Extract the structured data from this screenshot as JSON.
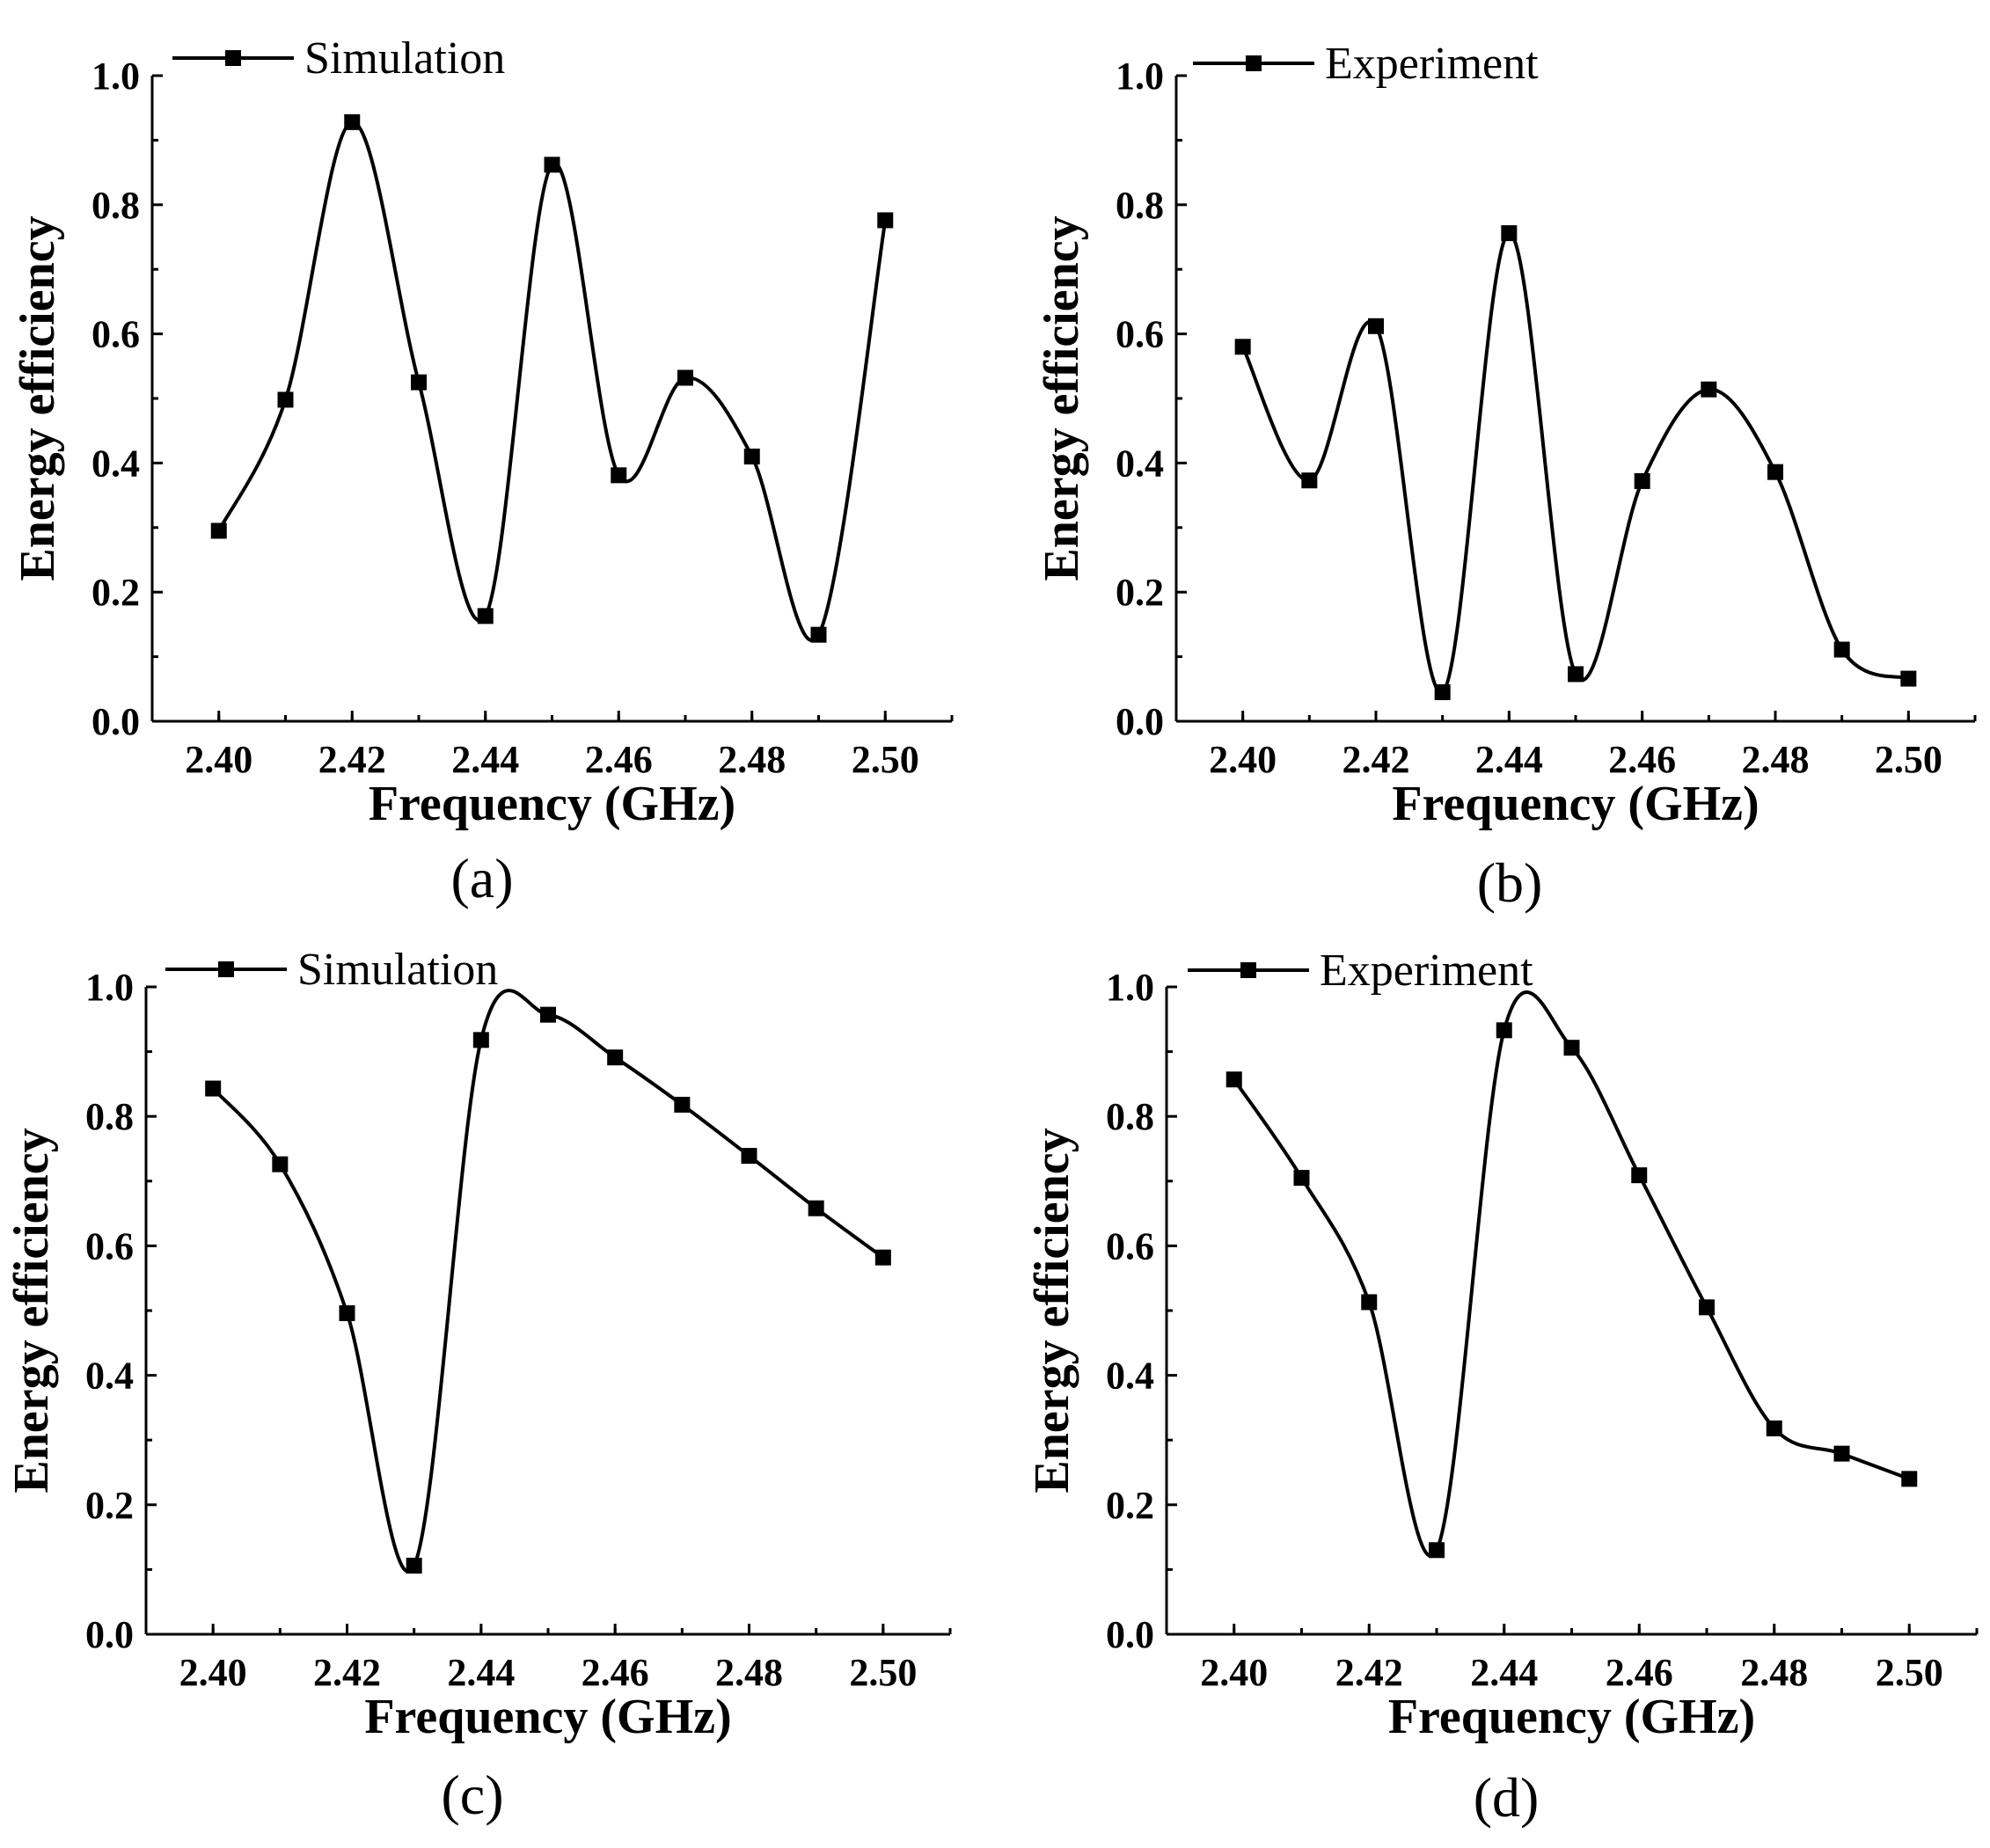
{
  "figure": {
    "panels": [
      "(a)",
      "(b)",
      "(c)",
      "(d)"
    ]
  },
  "chart_data": [
    {
      "type": "line",
      "panel": "(a)",
      "legend": "Simulation",
      "xlabel": "Frequency (GHz)",
      "ylabel": "Energy efficiency",
      "xlim": [
        2.39,
        2.51
      ],
      "ylim": [
        0.0,
        1.0
      ],
      "xticks": [
        "2.40",
        "2.42",
        "2.44",
        "2.46",
        "2.48",
        "2.50"
      ],
      "yticks": [
        "0.0",
        "0.2",
        "0.4",
        "0.6",
        "0.8",
        "1.0"
      ],
      "x": [
        2.4,
        2.41,
        2.42,
        2.43,
        2.44,
        2.45,
        2.46,
        2.47,
        2.48,
        2.49,
        2.5
      ],
      "values": [
        0.295,
        0.498,
        0.928,
        0.525,
        0.163,
        0.862,
        0.381,
        0.532,
        0.41,
        0.134,
        0.776
      ]
    },
    {
      "type": "line",
      "panel": "(b)",
      "legend": "Experiment",
      "xlabel": "Frequency (GHz)",
      "ylabel": "Energy efficiency",
      "xlim": [
        2.39,
        2.51
      ],
      "ylim": [
        0.0,
        1.0
      ],
      "xticks": [
        "2.40",
        "2.42",
        "2.44",
        "2.46",
        "2.48",
        "2.50"
      ],
      "yticks": [
        "0.0",
        "0.2",
        "0.4",
        "0.6",
        "0.8",
        "1.0"
      ],
      "x": [
        2.4,
        2.41,
        2.42,
        2.43,
        2.44,
        2.45,
        2.46,
        2.47,
        2.48,
        2.49,
        2.5
      ],
      "values": [
        0.58,
        0.373,
        0.612,
        0.045,
        0.756,
        0.073,
        0.372,
        0.514,
        0.386,
        0.111,
        0.066
      ]
    },
    {
      "type": "line",
      "panel": "(c)",
      "legend": "Simulation",
      "xlabel": "Frequency (GHz)",
      "ylabel": "Energy efficiency",
      "xlim": [
        2.39,
        2.51
      ],
      "ylim": [
        0.0,
        1.0
      ],
      "xticks": [
        "2.40",
        "2.42",
        "2.44",
        "2.46",
        "2.48",
        "2.50"
      ],
      "yticks": [
        "0.0",
        "0.2",
        "0.4",
        "0.6",
        "0.8",
        "1.0"
      ],
      "x": [
        2.4,
        2.41,
        2.42,
        2.43,
        2.44,
        2.45,
        2.46,
        2.47,
        2.48,
        2.49,
        2.5
      ],
      "values": [
        0.843,
        0.726,
        0.496,
        0.106,
        0.918,
        0.957,
        0.891,
        0.818,
        0.739,
        0.658,
        0.582
      ]
    },
    {
      "type": "line",
      "panel": "(d)",
      "legend": "Experiment",
      "xlabel": "Frequency (GHz)",
      "ylabel": "Energy efficiency",
      "xlim": [
        2.39,
        2.51
      ],
      "ylim": [
        0.0,
        1.0
      ],
      "xticks": [
        "2.40",
        "2.42",
        "2.44",
        "2.46",
        "2.48",
        "2.50"
      ],
      "yticks": [
        "0.0",
        "0.2",
        "0.4",
        "0.6",
        "0.8",
        "1.0"
      ],
      "x": [
        2.4,
        2.41,
        2.42,
        2.43,
        2.44,
        2.45,
        2.46,
        2.47,
        2.48,
        2.49,
        2.5
      ],
      "values": [
        0.857,
        0.705,
        0.513,
        0.13,
        0.933,
        0.906,
        0.709,
        0.505,
        0.318,
        0.279,
        0.24
      ]
    }
  ]
}
